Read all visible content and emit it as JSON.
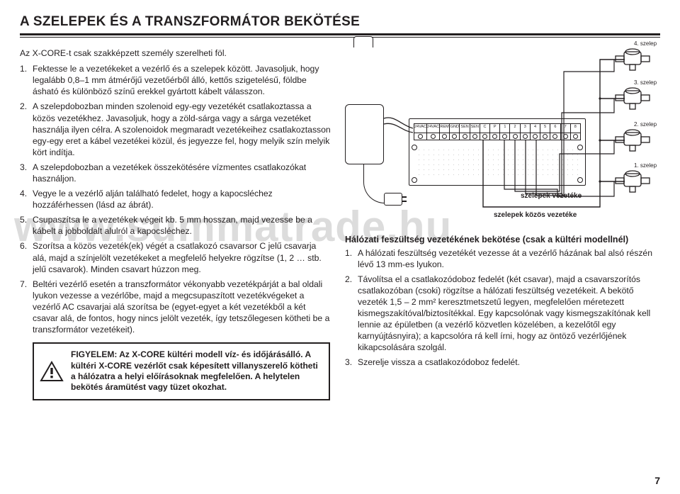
{
  "title": "A SZELEPEK ÉS A TRANSZFORMÁTOR BEKÖTÉSE",
  "intro": "Az X-CORE-t csak szakképzett személy szerelheti föl.",
  "watermark": "www.summatrade.hu",
  "left_steps": [
    "Fektesse le a vezetékeket a vezérlő és a szelepek között. Javasoljuk, hogy legalább 0,8–1 mm átmérőjű vezetőérből álló, kettős szigetelésű, földbe ásható és különböző színű erekkel gyártott kábelt válasszon.",
    "A szelepdobozban minden szolenoid egy-egy vezetékét csatlakoztassa a közös vezetékhez. Javasoljuk, hogy a zöld-sárga vagy a sárga vezetéket használja ilyen célra. A szolenoidok megmaradt vezetékeihez csatlakoztasson egy-egy eret a kábel vezetékei közül, és jegyezze fel, hogy melyik szín melyik kört indítja.",
    "A szelepdobozban a vezetékek összekötésére vízmentes csatlakozókat használjon.",
    "Vegye le a vezérlő alján található fedelet, hogy a kapocsléchez hozzáférhessen (lásd az ábrát).",
    "Csupaszítsa le a vezetékek végeit kb. 5 mm hosszan, majd vezesse be a kábelt a jobboldalt alulról a kapocsléchez.",
    "Szorítsa a közös vezeték(ek) végét a csatlakozó csavarsor C jelű csavarja alá, majd a színjelölt vezetékeket a megfelelő helyekre rögzítse (1, 2 … stb. jelű csavarok). Minden csavart húzzon meg.",
    "Beltéri vezérlő esetén a transzformátor vékonyabb vezetékpárját a bal oldali lyukon vezesse a vezérlőbe, majd a megcsupaszított vezetékvégeket a vezérlő AC csavarjai alá szorítsa be (egyet-egyet a két vezetékből a két csavar alá, de fontos, hogy nincs jelölt vezeték, így tetszőlegesen kötheti be a transzformátor vezetékeit)."
  ],
  "warning": "FIGYELEM: Az X-CORE kültéri modell víz- és időjárásálló. A kültéri X-CORE vezérlőt csak képesített villanyszerelő kötheti a hálózatra a helyi előírásoknak megfelelően. A helytelen bekötés áramütést vagy tüzet okozhat.",
  "terminals": [
    "24VAC",
    "24VAC",
    "REM",
    "GND",
    "SEN",
    "SEN",
    "C",
    "P",
    "1",
    "2",
    "3",
    "4",
    "5",
    "6",
    "7",
    "8"
  ],
  "caption_a": "szelepek vezetéke",
  "caption_b": "szelepek közös vezetéke",
  "valve_labels": [
    "4. szelep",
    "3. szelep",
    "2. szelep",
    "1. szelep"
  ],
  "right_heading": "Hálózati feszültség vezetékének bekötése (csak a kültéri modellnél)",
  "right_steps": [
    "A hálózati feszültség vezetékét vezesse át a vezérlő házának bal alsó részén lévő 13 mm-es lyukon.",
    "Távolítsa el a csatlakozódoboz fedelét (két csavar), majd a csavarszorítós csatlakozóban (csoki) rögzítse a hálózati feszültség vezetékeit. A bekötő vezeték 1,5 – 2 mm² keresztmetszetű legyen, megfelelően méretezett kismegszakítóval/biztosítékkal. Egy kapcsolónak vagy kismegszakítónak kell lennie az épületben (a vezérlő közvetlen közelében, a kezelőtől egy karnyújtásnyira); a kapcsolóra rá kell írni, hogy az öntöző vezérlőjének kikapcsolására szolgál.",
    "Szerelje vissza a csatlakozódoboz fedelét."
  ],
  "page_number": "7",
  "colors": {
    "ink": "#231f20",
    "wm": "#dcdcdc"
  }
}
